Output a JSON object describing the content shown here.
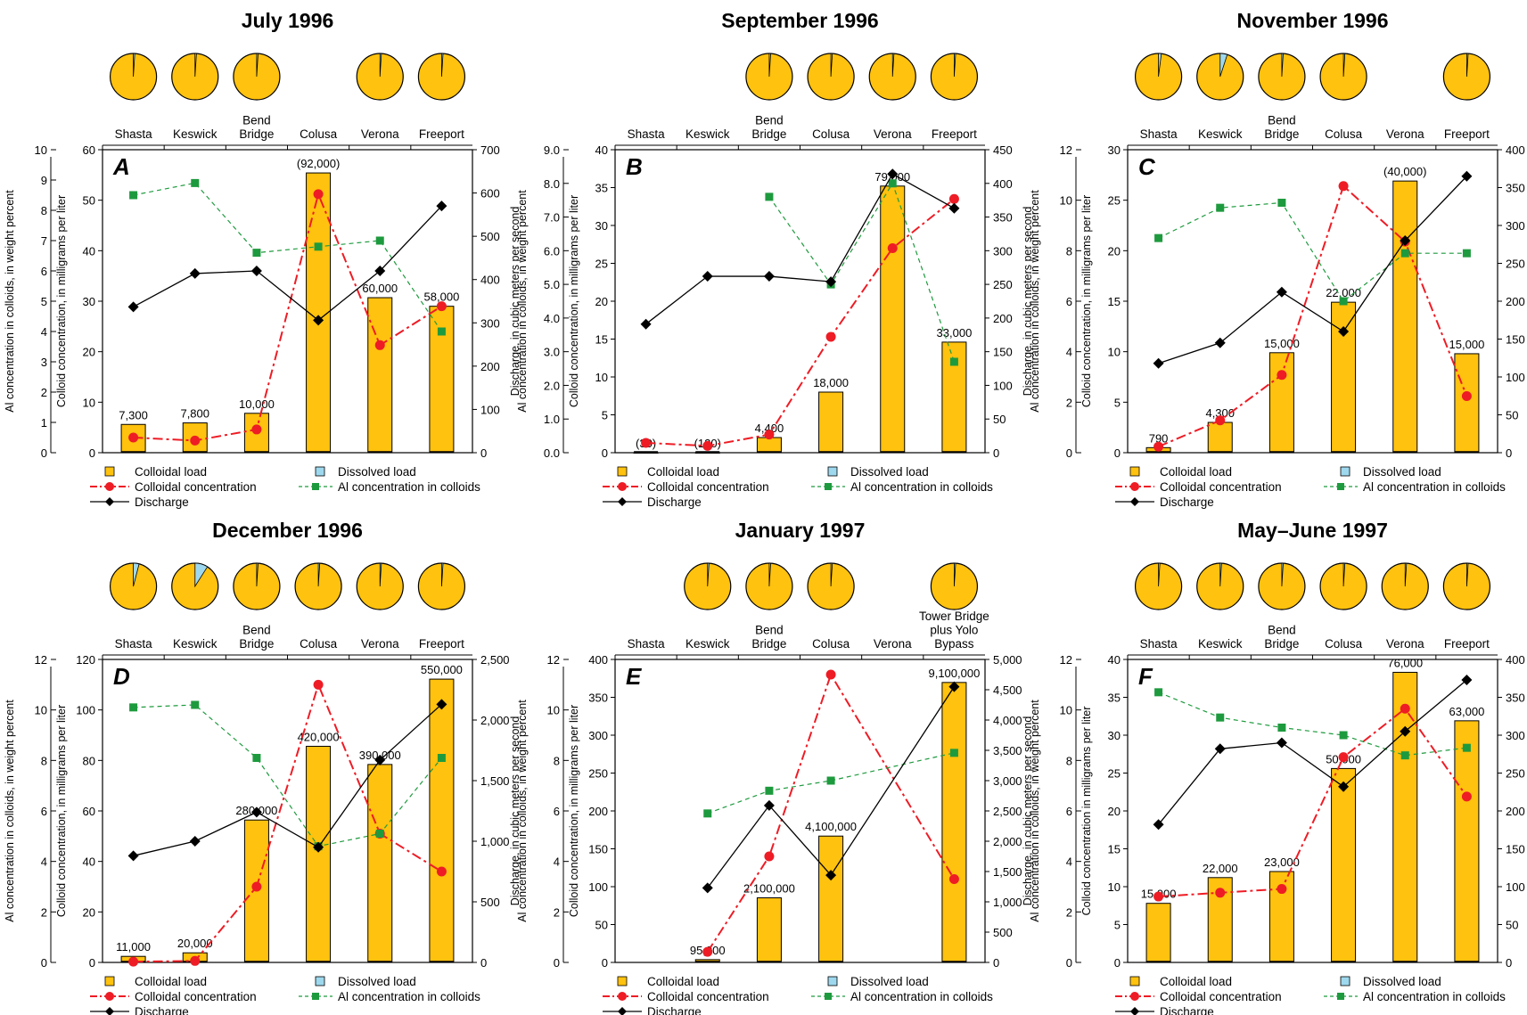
{
  "figure": {
    "y1_label": "Al concentration in colloids, in weight percent",
    "y2_label": "Colloid concentration, in milligrams per liter",
    "y3_label": "Discharge, in cubic meters per second",
    "y2_label_F": "Colloid concentration in milligrams per liter",
    "legend": {
      "colloidal_load": "Colloidal load",
      "dissolved_load": "Dissolved load",
      "colloidal_concentration": "Colloidal concentration",
      "al_concentration": "Al concentration in colloids",
      "discharge": "Discharge"
    },
    "colors": {
      "colloidal_load": "#FFC20E",
      "dissolved_load": "#9ED8EE",
      "colloidal_concentration": "#EE1C25",
      "al_concentration": "#1E9A3E",
      "discharge": "#000000"
    }
  },
  "chart_data": [
    {
      "type": "bar",
      "id": "july",
      "panel_letter": "A",
      "title": "July 1996",
      "categories": [
        "Shasta",
        "Keswick",
        "Bend Bridge",
        "Colusa",
        "Verona",
        "Freeport"
      ],
      "axis_al": {
        "min": 0,
        "max": 10,
        "ticks": [
          "0",
          "1",
          "2",
          "3",
          "4",
          "5",
          "6",
          "7",
          "8",
          "9",
          "10"
        ]
      },
      "axis_conc": {
        "min": 0,
        "max": 60,
        "ticks": [
          "0",
          "10",
          "20",
          "30",
          "40",
          "50",
          "60"
        ]
      },
      "axis_q": {
        "min": 0,
        "max": 700,
        "ticks": [
          "0",
          "100",
          "200",
          "300",
          "400",
          "500",
          "600",
          "700"
        ]
      },
      "pies": [
        0.01,
        0.01,
        0.01,
        null,
        0.01,
        0.01
      ],
      "bar_values": [
        5.6,
        5.9,
        7.8,
        55.4,
        30.7,
        29.0
      ],
      "bar_labels": [
        "7,300",
        "7,800",
        "10,000",
        "(92,000)",
        "60,000",
        "58,000"
      ],
      "series": [
        {
          "name": "Colloidal concentration",
          "values": [
            3.0,
            2.4,
            4.6,
            51.2,
            21.3,
            29.0
          ]
        },
        {
          "name": "Al concentration in colloids",
          "values": [
            8.5,
            8.9,
            6.6,
            6.8,
            7.0,
            4.0
          ]
        },
        {
          "name": "Discharge",
          "values": [
            337,
            414,
            420,
            306,
            420,
            570
          ]
        }
      ]
    },
    {
      "type": "bar",
      "id": "september",
      "panel_letter": "B",
      "title": "September 1996",
      "categories": [
        "Shasta",
        "Keswick",
        "Bend Bridge",
        "Colusa",
        "Verona",
        "Freeport"
      ],
      "axis_al": {
        "min": 0,
        "max": 9,
        "ticks": [
          "0.0",
          "1.0",
          "2.0",
          "3.0",
          "4.0",
          "5.0",
          "6.0",
          "7.0",
          "8.0",
          "9.0"
        ]
      },
      "axis_conc": {
        "min": 0,
        "max": 40,
        "ticks": [
          "0",
          "5",
          "10",
          "15",
          "20",
          "25",
          "30",
          "35",
          "40"
        ]
      },
      "axis_q": {
        "min": 0,
        "max": 450,
        "ticks": [
          "0",
          "50",
          "100",
          "150",
          "200",
          "250",
          "300",
          "350",
          "400",
          "450"
        ]
      },
      "pies": [
        null,
        null,
        0.01,
        0.01,
        0.01,
        0.01
      ],
      "bar_values": [
        0,
        0,
        2.0,
        8.0,
        35.2,
        14.6
      ],
      "bar_labels": [
        "(30)",
        "(120)",
        "4,400",
        "18,000",
        "79,000",
        "33,000"
      ],
      "series": [
        {
          "name": "Colloidal concentration",
          "values": [
            1.3,
            0.9,
            2.4,
            15.3,
            27.0,
            33.5
          ]
        },
        {
          "name": "Al concentration in colloids",
          "values": [
            null,
            null,
            7.6,
            5.0,
            8.0,
            2.7
          ]
        },
        {
          "name": "Discharge",
          "values": [
            191,
            262,
            262,
            254,
            414,
            363
          ]
        }
      ]
    },
    {
      "type": "bar",
      "id": "november",
      "panel_letter": "C",
      "title": "November 1996",
      "categories": [
        "Shasta",
        "Keswick",
        "Bend Bridge",
        "Colusa",
        "Verona",
        "Freeport"
      ],
      "axis_al": {
        "min": 0,
        "max": 12,
        "ticks": [
          "0",
          "2",
          "4",
          "6",
          "8",
          "10",
          "12"
        ]
      },
      "axis_conc": {
        "min": 0,
        "max": 30,
        "ticks": [
          "0",
          "5",
          "10",
          "15",
          "20",
          "25",
          "30"
        ]
      },
      "axis_q": {
        "min": 0,
        "max": 400,
        "ticks": [
          "0",
          "50",
          "100",
          "150",
          "200",
          "250",
          "300",
          "350",
          "400"
        ]
      },
      "pies": [
        0.02,
        0.05,
        0.01,
        0.01,
        null,
        0.01
      ],
      "bar_values": [
        0.5,
        3.0,
        9.9,
        14.9,
        26.9,
        9.8
      ],
      "bar_labels": [
        "790",
        "4,300",
        "15,000",
        "22,000",
        "(40,000)",
        "15,000"
      ],
      "series": [
        {
          "name": "Colloidal concentration",
          "values": [
            0.6,
            3.2,
            7.7,
            26.4,
            20.9,
            5.6
          ]
        },
        {
          "name": "Al concentration in colloids",
          "values": [
            8.5,
            9.7,
            9.9,
            6.0,
            7.9,
            7.9
          ]
        },
        {
          "name": "Discharge",
          "values": [
            118,
            145,
            212,
            160,
            280,
            365
          ]
        }
      ]
    },
    {
      "type": "bar",
      "id": "december",
      "panel_letter": "D",
      "title": "December 1996",
      "categories": [
        "Shasta",
        "Keswick",
        "Bend Bridge",
        "Colusa",
        "Verona",
        "Freeport"
      ],
      "axis_al": {
        "min": 0,
        "max": 12,
        "ticks": [
          "0",
          "2",
          "4",
          "6",
          "8",
          "10",
          "12"
        ]
      },
      "axis_conc": {
        "min": 0,
        "max": 120,
        "ticks": [
          "0",
          "20",
          "40",
          "60",
          "80",
          "100",
          "120"
        ]
      },
      "axis_q": {
        "min": 0,
        "max": 2500,
        "ticks": [
          "0",
          "500",
          "1,000",
          "1,500",
          "2,000",
          "2,500"
        ]
      },
      "pies": [
        0.04,
        0.09,
        0.01,
        0.01,
        0.01,
        0.01
      ],
      "bar_values": [
        2.4,
        3.8,
        56.4,
        85.6,
        78.4,
        112.2
      ],
      "bar_labels": [
        "11,000",
        "20,000",
        "280,000",
        "420,000",
        "390,000",
        "550,000"
      ],
      "series": [
        {
          "name": "Colloidal concentration",
          "values": [
            0.3,
            0.6,
            30,
            110,
            51,
            36
          ]
        },
        {
          "name": "Al concentration in colloids",
          "values": [
            10.1,
            10.2,
            8.1,
            4.6,
            5.1,
            8.1
          ]
        },
        {
          "name": "Discharge",
          "values": [
            880,
            1000,
            1240,
            950,
            1670,
            2130
          ]
        }
      ]
    },
    {
      "type": "bar",
      "id": "january",
      "panel_letter": "E",
      "title": "January 1997",
      "categories": [
        "Shasta",
        "Keswick",
        "Bend Bridge",
        "Colusa",
        "Verona",
        "Tower Bridge plus Yolo Bypass"
      ],
      "axis_al": {
        "min": 0,
        "max": 12,
        "ticks": [
          "0",
          "2",
          "4",
          "6",
          "8",
          "10",
          "12"
        ]
      },
      "axis_conc": {
        "min": 0,
        "max": 400,
        "ticks": [
          "0",
          "50",
          "100",
          "150",
          "200",
          "250",
          "300",
          "350",
          "400"
        ]
      },
      "axis_q": {
        "min": 0,
        "max": 5000,
        "ticks": [
          "0",
          "500",
          "1,000",
          "1,500",
          "2,000",
          "2,500",
          "3,000",
          "3,500",
          "4,000",
          "4,500",
          "5,000"
        ]
      },
      "pies": [
        null,
        0.01,
        0.01,
        0.01,
        null,
        0.01
      ],
      "bar_values": [
        null,
        3.7,
        85.3,
        166.8,
        null,
        369.6
      ],
      "bar_labels": [
        "",
        "95,000",
        "2,100,000",
        "4,100,000",
        "",
        "9,100,000"
      ],
      "series": [
        {
          "name": "Colloidal concentration",
          "values": [
            null,
            14,
            140,
            380,
            null,
            110
          ]
        },
        {
          "name": "Al concentration in colloids",
          "values": [
            null,
            5.9,
            6.8,
            7.2,
            null,
            8.3
          ]
        },
        {
          "name": "Discharge",
          "values": [
            null,
            1230,
            2590,
            1440,
            null,
            4550
          ]
        }
      ]
    },
    {
      "type": "bar",
      "id": "mayjune",
      "panel_letter": "F",
      "title": "May–June 1997",
      "categories": [
        "Shasta",
        "Keswick",
        "Bend Bridge",
        "Colusa",
        "Verona",
        "Freeport"
      ],
      "axis_al": {
        "min": 0,
        "max": 12,
        "ticks": [
          "0",
          "2",
          "4",
          "6",
          "8",
          "10",
          "12"
        ]
      },
      "axis_conc": {
        "min": 0,
        "max": 40,
        "ticks": [
          "0",
          "5",
          "10",
          "15",
          "20",
          "25",
          "30",
          "35",
          "40"
        ]
      },
      "axis_q": {
        "min": 0,
        "max": 400,
        "ticks": [
          "0",
          "50",
          "100",
          "150",
          "200",
          "250",
          "300",
          "350",
          "400"
        ]
      },
      "pies": [
        0.01,
        0.01,
        0.01,
        0.01,
        0.01,
        0.01
      ],
      "bar_values": [
        7.8,
        11.2,
        12.0,
        25.6,
        38.3,
        31.9
      ],
      "bar_labels": [
        "15,000",
        "22,000",
        "23,000",
        "50,000",
        "76,000",
        "63,000"
      ],
      "series": [
        {
          "name": "Colloidal concentration",
          "values": [
            8.7,
            9.2,
            9.7,
            27.1,
            33.5,
            21.9
          ]
        },
        {
          "name": "Al concentration in colloids",
          "values": [
            10.7,
            9.7,
            9.3,
            9.0,
            8.2,
            8.5
          ]
        },
        {
          "name": "Discharge",
          "values": [
            182,
            282,
            290,
            232,
            305,
            373
          ]
        }
      ]
    }
  ]
}
